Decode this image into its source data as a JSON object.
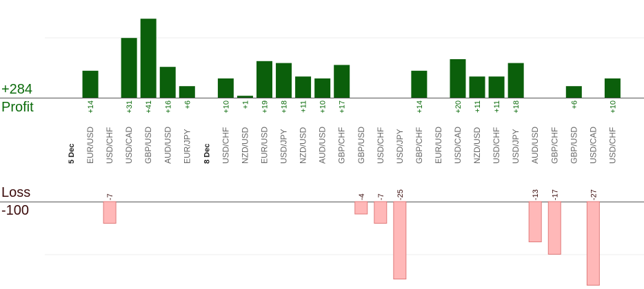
{
  "labels": {
    "profit_total": "+284",
    "profit_title": "Profit",
    "loss_title": "Loss",
    "loss_total": "-100"
  },
  "colors": {
    "profit_bar": "#0b5f0b",
    "loss_bar": "#ffb8b8",
    "loss_bar_edge": "#e07a7a",
    "profit_text": "#0b6b0b",
    "loss_text": "#3a0a0a",
    "pair_text": "#666666",
    "date_text": "#222222",
    "gridline": "#eeeeee",
    "baseline": "#555555"
  },
  "chart_data": {
    "type": "bar",
    "profit_axis": {
      "ylim": [
        0,
        50
      ]
    },
    "loss_axis": {
      "ylim": [
        0,
        30
      ]
    },
    "categories": [
      {
        "kind": "date",
        "label": "5 Dec"
      },
      {
        "kind": "pair",
        "label": "EUR/USD",
        "value": 14
      },
      {
        "kind": "pair",
        "label": "USD/CHF",
        "value": -7
      },
      {
        "kind": "pair",
        "label": "USD/CAD",
        "value": 31
      },
      {
        "kind": "pair",
        "label": "GBP/USD",
        "value": 41
      },
      {
        "kind": "pair",
        "label": "AUD/USD",
        "value": 16
      },
      {
        "kind": "pair",
        "label": "EUR/JPY",
        "value": 6
      },
      {
        "kind": "date",
        "label": "8 Dec"
      },
      {
        "kind": "pair",
        "label": "USD/CHF",
        "value": 10
      },
      {
        "kind": "pair",
        "label": "NZD/USD",
        "value": 1
      },
      {
        "kind": "pair",
        "label": "EUR/USD",
        "value": 19
      },
      {
        "kind": "pair",
        "label": "USD/JPY",
        "value": 18
      },
      {
        "kind": "pair",
        "label": "NZD/USD",
        "value": 11
      },
      {
        "kind": "pair",
        "label": "AUD/USD",
        "value": 10
      },
      {
        "kind": "pair",
        "label": "GBP/CHF",
        "value": 17
      },
      {
        "kind": "pair",
        "label": "GBP/USD",
        "value": -4
      },
      {
        "kind": "pair",
        "label": "USD/CHF",
        "value": -7
      },
      {
        "kind": "pair",
        "label": "USD/JPY",
        "value": -25
      },
      {
        "kind": "pair",
        "label": "GBP/CHF",
        "value": 14
      },
      {
        "kind": "pair",
        "label": "EUR/USD",
        "value": null
      },
      {
        "kind": "pair",
        "label": "USD/CAD",
        "value": 20
      },
      {
        "kind": "pair",
        "label": "NZD/USD",
        "value": 11
      },
      {
        "kind": "pair",
        "label": "USD/CHF",
        "value": 11
      },
      {
        "kind": "pair",
        "label": "USD/JPY",
        "value": 18
      },
      {
        "kind": "pair",
        "label": "AUD/USD",
        "value": -13
      },
      {
        "kind": "pair",
        "label": "GBP/CHF",
        "value": -17
      },
      {
        "kind": "pair",
        "label": "GBP/USD",
        "value": 6
      },
      {
        "kind": "pair",
        "label": "USD/CAD",
        "value": -27
      },
      {
        "kind": "pair",
        "label": "USD/CHF",
        "value": 10
      }
    ]
  }
}
